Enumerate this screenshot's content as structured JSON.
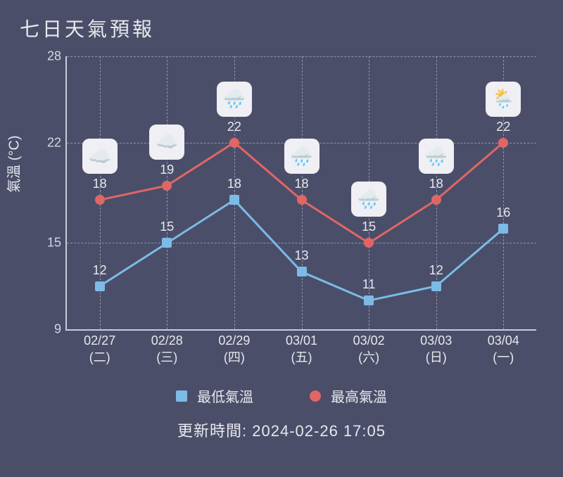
{
  "title": "七日天氣預報",
  "y_axis_label": "氣溫 (°C)",
  "update_time_prefix": "更新時間: ",
  "update_time_value": "2024-02-26 17:05",
  "legend": {
    "low": "最低氣溫",
    "high": "最高氣溫"
  },
  "chart": {
    "type": "line",
    "ylim": [
      9,
      28
    ],
    "yticks": [
      9,
      15,
      22,
      28
    ],
    "background_color": "#4a4e69",
    "grid_color": "rgba(200,202,215,0.55)",
    "axis_color": "#c9ccd8",
    "text_color": "#e8e8ed",
    "low_series": {
      "color": "#7cbbe6",
      "marker": "square",
      "line_width": 3,
      "values": [
        12,
        15,
        18,
        13,
        11,
        12,
        16
      ]
    },
    "high_series": {
      "color": "#e06666",
      "marker": "circle",
      "line_width": 3,
      "values": [
        18,
        19,
        22,
        18,
        15,
        18,
        22
      ]
    },
    "days": [
      {
        "date": "02/27",
        "weekday": "(二)",
        "icon": "cloudy"
      },
      {
        "date": "02/28",
        "weekday": "(三)",
        "icon": "cloudy"
      },
      {
        "date": "02/29",
        "weekday": "(四)",
        "icon": "rain"
      },
      {
        "date": "03/01",
        "weekday": "(五)",
        "icon": "rain"
      },
      {
        "date": "03/02",
        "weekday": "(六)",
        "icon": "rain"
      },
      {
        "date": "03/03",
        "weekday": "(日)",
        "icon": "rain"
      },
      {
        "date": "03/04",
        "weekday": "(一)",
        "icon": "partly"
      }
    ],
    "icon_glyphs": {
      "cloudy": "☁️",
      "rain": "🌧️",
      "partly": "🌦️"
    }
  }
}
